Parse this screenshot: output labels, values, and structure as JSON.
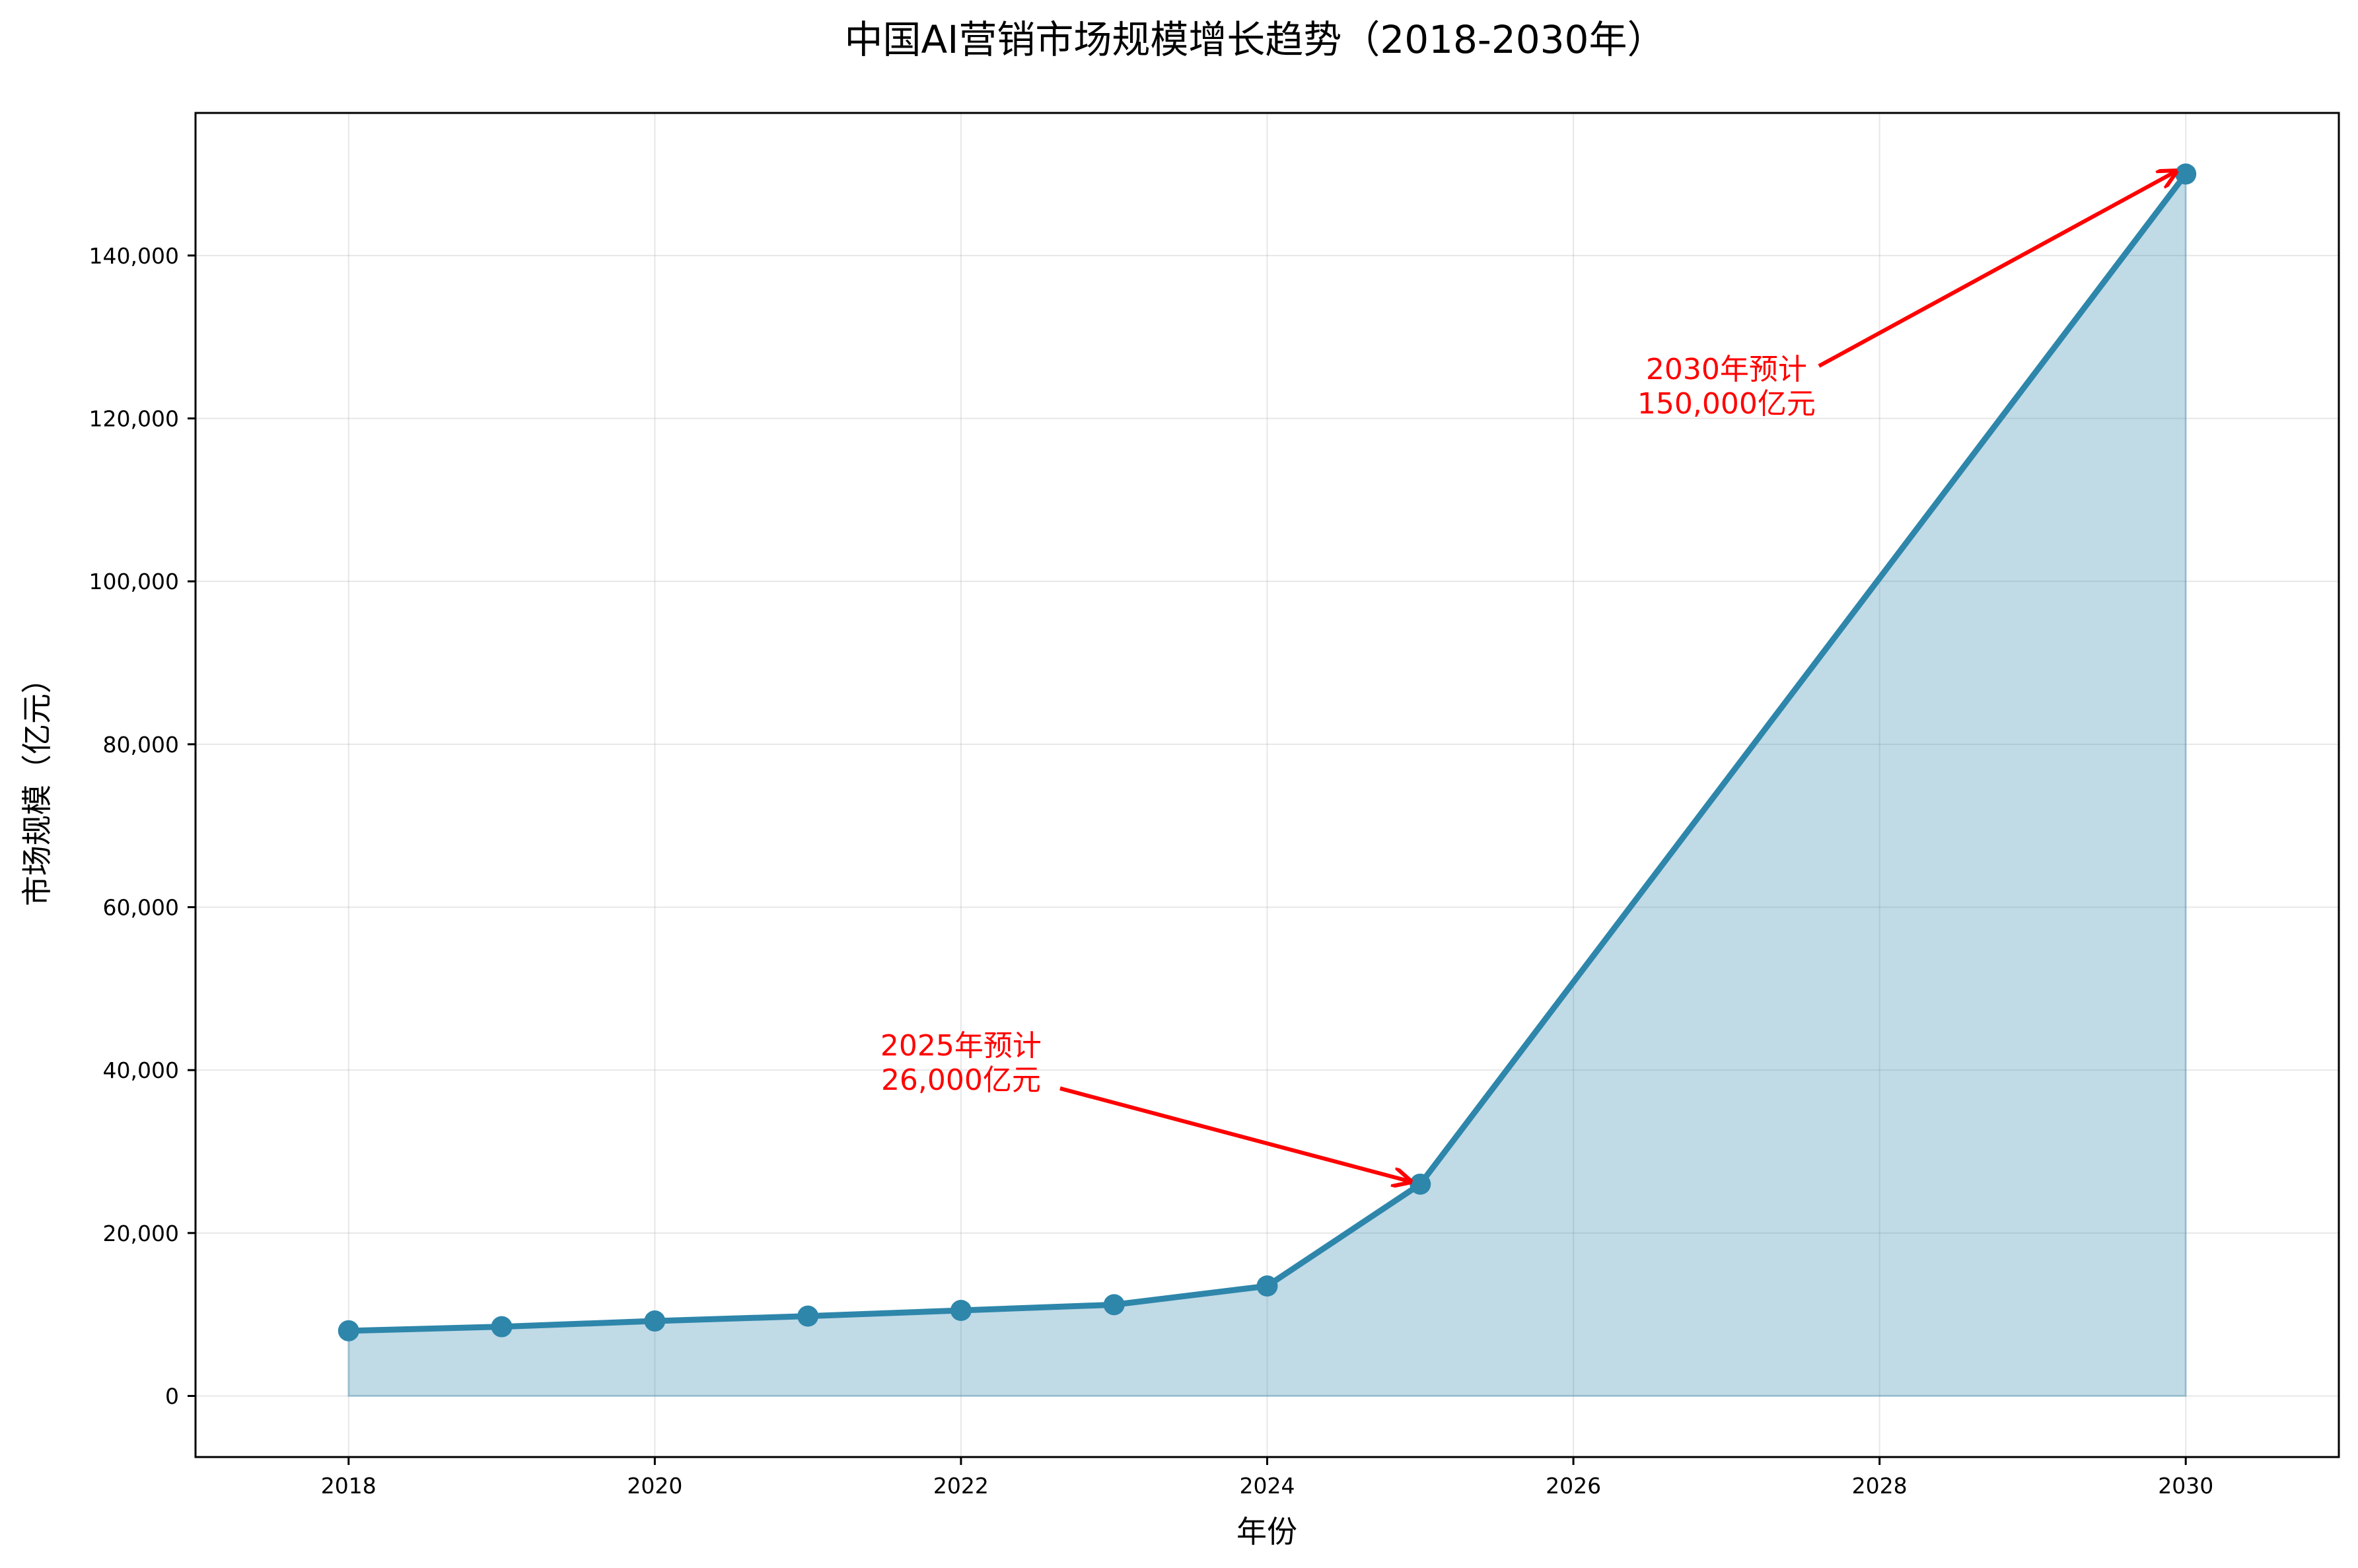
{
  "chart_data": {
    "type": "area",
    "title": "中国AI营销市场规模增长趋势（2018-2030年）",
    "xlabel": "年份",
    "ylabel": "市场规模（亿元）",
    "x": [
      2018,
      2019,
      2020,
      2021,
      2022,
      2023,
      2024,
      2025,
      2030
    ],
    "values": [
      8000,
      8500,
      9200,
      9800,
      10500,
      11200,
      13500,
      26000,
      150000
    ],
    "xlim": [
      2017,
      2031
    ],
    "ylim": [
      -7500,
      157500
    ],
    "xticks": [
      2018,
      2020,
      2022,
      2024,
      2026,
      2028,
      2030
    ],
    "xtick_labels": [
      "2018",
      "2020",
      "2022",
      "2024",
      "2026",
      "2028",
      "2030"
    ],
    "yticks": [
      0,
      20000,
      40000,
      60000,
      80000,
      100000,
      120000,
      140000
    ],
    "ytick_labels": [
      "0",
      "20,000",
      "40,000",
      "60,000",
      "80,000",
      "100,000",
      "120,000",
      "140,000"
    ],
    "grid": true,
    "colors": {
      "line": "#2e86ab",
      "fill": "#2e86ab",
      "annotation": "#ff0000"
    },
    "annotations": [
      {
        "lines": [
          "2025年预计",
          "26,000亿元"
        ],
        "point": [
          2025,
          26000
        ],
        "text_at": [
          2022,
          41000
        ]
      },
      {
        "lines": [
          "2030年预计",
          "150,000亿元"
        ],
        "point": [
          2030,
          150000
        ],
        "text_at": [
          2027,
          124000
        ]
      }
    ]
  }
}
